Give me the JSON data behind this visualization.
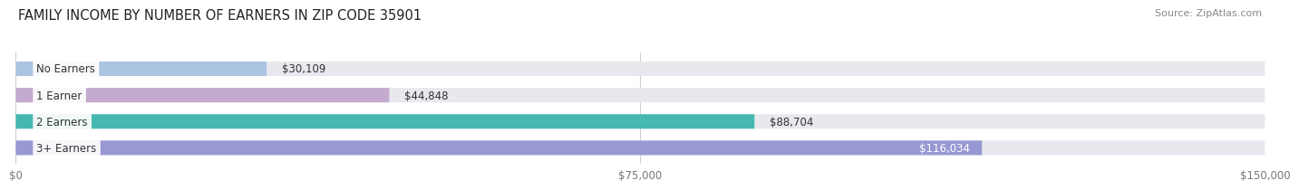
{
  "title": "FAMILY INCOME BY NUMBER OF EARNERS IN ZIP CODE 35901",
  "source": "Source: ZipAtlas.com",
  "categories": [
    "No Earners",
    "1 Earner",
    "2 Earners",
    "3+ Earners"
  ],
  "values": [
    30109,
    44848,
    88704,
    116034
  ],
  "bar_colors": [
    "#aac4e2",
    "#c4aace",
    "#45b8b0",
    "#9898d4"
  ],
  "label_colors": [
    "#333333",
    "#333333",
    "#333333",
    "#ffffff"
  ],
  "value_labels": [
    "$30,109",
    "$44,848",
    "$88,704",
    "$116,034"
  ],
  "x_max": 150000,
  "x_ticks": [
    0,
    75000,
    150000
  ],
  "x_tick_labels": [
    "$0",
    "$75,000",
    "$150,000"
  ],
  "bg_color": "#ffffff",
  "bar_bg": "#e8e8ee",
  "title_fontsize": 10.5,
  "source_fontsize": 8,
  "tick_fontsize": 8.5,
  "label_fontsize": 8.5,
  "value_fontsize": 8.5,
  "bar_height": 0.55,
  "bar_spacing": 1.0
}
